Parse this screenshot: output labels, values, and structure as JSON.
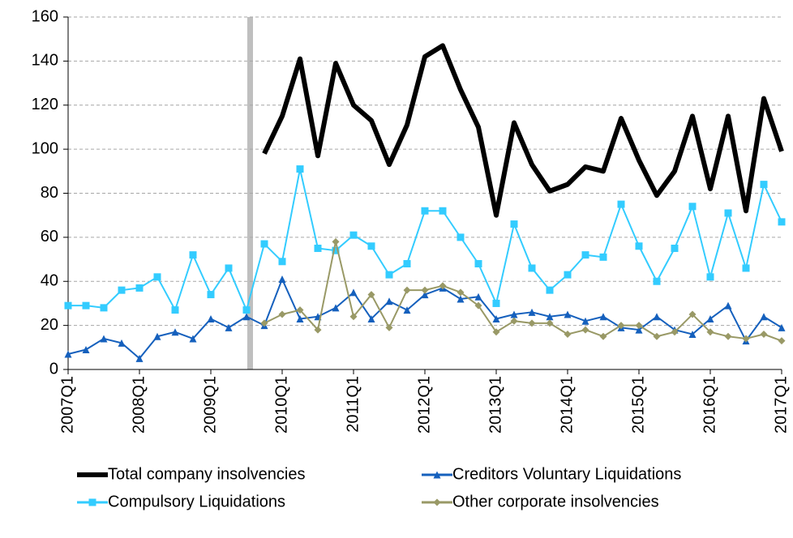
{
  "chart_data": {
    "type": "line",
    "categories": [
      "2007Q1",
      null,
      null,
      null,
      "2008Q1",
      null,
      null,
      null,
      "2009Q1",
      null,
      null,
      null,
      "2010Q1",
      null,
      null,
      null,
      "2011Q1",
      null,
      null,
      null,
      "2012Q1",
      null,
      null,
      null,
      "2013Q1",
      null,
      null,
      null,
      "2014Q1",
      null,
      null,
      null,
      "2015Q1",
      null,
      null,
      null,
      "2016Q1",
      null,
      null,
      null,
      "2017Q1"
    ],
    "series": [
      {
        "name": "Total company insolvencies",
        "color": "#000000",
        "marker": "none",
        "width": 6,
        "values": [
          null,
          null,
          null,
          null,
          null,
          null,
          null,
          null,
          null,
          null,
          null,
          98,
          115,
          141,
          97,
          139,
          120,
          113,
          93,
          111,
          142,
          147,
          127,
          110,
          70,
          112,
          93,
          81,
          84,
          92,
          90,
          114,
          95,
          79,
          90,
          115,
          82,
          115,
          72,
          123,
          99
        ]
      },
      {
        "name": "Creditors Voluntary Liquidations",
        "color": "#1560bd",
        "marker": "triangle",
        "width": 2,
        "values": [
          7,
          9,
          14,
          12,
          5,
          15,
          17,
          14,
          23,
          19,
          24,
          20,
          41,
          23,
          24,
          28,
          35,
          23,
          31,
          27,
          34,
          37,
          32,
          33,
          23,
          25,
          26,
          24,
          25,
          22,
          24,
          19,
          18,
          24,
          18,
          16,
          23,
          29,
          13,
          24,
          19
        ]
      },
      {
        "name": "Compulsory Liquidations",
        "color": "#33ccff",
        "marker": "square",
        "width": 2,
        "values": [
          29,
          29,
          28,
          36,
          37,
          42,
          27,
          52,
          34,
          46,
          27,
          57,
          49,
          91,
          55,
          54,
          61,
          56,
          43,
          48,
          72,
          72,
          60,
          48,
          30,
          66,
          46,
          36,
          43,
          52,
          51,
          75,
          56,
          40,
          55,
          74,
          42,
          71,
          46,
          84,
          67
        ]
      },
      {
        "name": "Other corporate insolvencies",
        "color": "#999966",
        "marker": "diamond",
        "width": 2,
        "values": [
          null,
          null,
          null,
          null,
          null,
          null,
          null,
          null,
          null,
          null,
          null,
          21,
          25,
          27,
          18,
          58,
          24,
          34,
          19,
          36,
          36,
          38,
          35,
          29,
          17,
          22,
          21,
          21,
          16,
          18,
          15,
          20,
          20,
          15,
          17,
          25,
          17,
          15,
          14,
          16,
          13
        ]
      }
    ],
    "ylim": [
      0,
      160
    ],
    "yticks": [
      0,
      20,
      40,
      60,
      80,
      100,
      120,
      140,
      160
    ],
    "grid": true
  }
}
